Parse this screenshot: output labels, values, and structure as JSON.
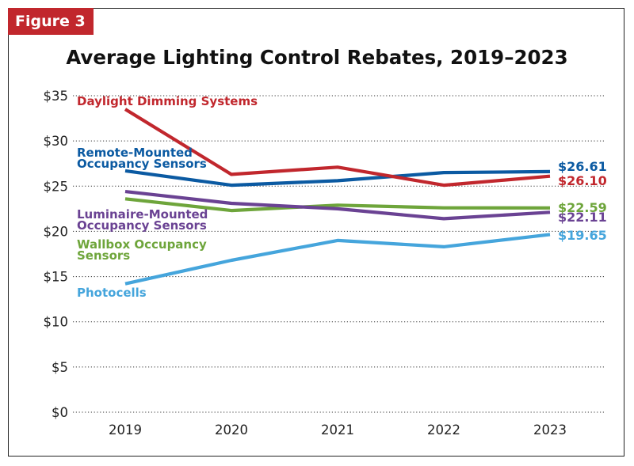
{
  "badge": "Figure 3",
  "colors": {
    "red": "#c1272d",
    "blue": "#0b5aa2",
    "purple": "#6a4293",
    "green": "#6ea53b",
    "lightblue": "#45a5dc",
    "grid": "#333333"
  },
  "chart_data": {
    "type": "line",
    "title": "Average Lighting Control Rebates, 2019–2023",
    "xlabel": "",
    "ylabel": "",
    "x": [
      "2019",
      "2020",
      "2021",
      "2022",
      "2023"
    ],
    "ylim": [
      0,
      35
    ],
    "yticks": [
      "$0",
      "$5",
      "$10",
      "$15",
      "$20",
      "$25",
      "$30",
      "$35"
    ],
    "grid": "horizontal dotted",
    "series": [
      {
        "name": "Daylight Dimming Systems",
        "lines": [
          "Daylight Dimming Systems"
        ],
        "color": "#c1272d",
        "values": [
          33.5,
          26.3,
          27.1,
          25.1,
          26.1
        ],
        "end_label": "$26.10"
      },
      {
        "name": "Remote-Mounted Occupancy Sensors",
        "lines": [
          "Remote-Mounted",
          "Occupancy Sensors"
        ],
        "color": "#0b5aa2",
        "values": [
          26.7,
          25.1,
          25.6,
          26.5,
          26.61
        ],
        "end_label": "$26.61"
      },
      {
        "name": "Luminaire-Mounted Occupancy Sensors",
        "lines": [
          "Luminaire-Mounted",
          "Occupancy Sensors"
        ],
        "color": "#6a4293",
        "values": [
          24.4,
          23.1,
          22.5,
          21.4,
          22.11
        ],
        "end_label": "$22.11"
      },
      {
        "name": "Wallbox Occupancy Sensors",
        "lines": [
          "Wallbox Occupancy",
          "Sensors"
        ],
        "color": "#6ea53b",
        "values": [
          23.6,
          22.3,
          22.9,
          22.6,
          22.59
        ],
        "end_label": "$22.59"
      },
      {
        "name": "Photocells",
        "lines": [
          "Photocells"
        ],
        "color": "#45a5dc",
        "values": [
          14.2,
          16.8,
          19.0,
          18.3,
          19.65
        ],
        "end_label": "$19.65"
      }
    ]
  }
}
